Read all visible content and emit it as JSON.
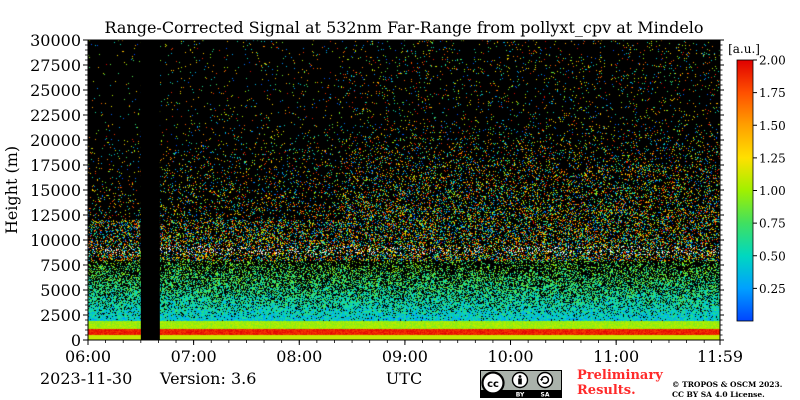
{
  "chart_data": {
    "type": "heatmap",
    "title": "Range-Corrected Signal at 532nm Far-Range from pollyxt_cpv at Mindelo",
    "xlabel": "UTC",
    "ylabel": "Height (m)",
    "x_tick_labels": [
      "06:00",
      "07:00",
      "08:00",
      "09:00",
      "10:00",
      "11:00",
      "11:59"
    ],
    "x_tick_values_hours": [
      6.0,
      7.0,
      8.0,
      9.0,
      10.0,
      11.0,
      11.983
    ],
    "xlim_hours": [
      6.0,
      11.983
    ],
    "y_ticks": [
      0,
      2500,
      5000,
      7500,
      10000,
      12500,
      15000,
      17500,
      20000,
      22500,
      25000,
      27500,
      30000
    ],
    "ylim": [
      0,
      30000
    ],
    "colorbar": {
      "label": "[a.u.]",
      "ticks": [
        "0.25",
        "0.50",
        "0.75",
        "1.00",
        "1.25",
        "1.50",
        "1.75",
        "2.00"
      ],
      "tick_values": [
        0.25,
        0.5,
        0.75,
        1.0,
        1.25,
        1.5,
        1.75,
        2.0
      ],
      "range": [
        0.0,
        2.0
      ],
      "colors": [
        "#0044ff",
        "#00a0ff",
        "#00d8c0",
        "#40e060",
        "#a0f000",
        "#ffe000",
        "#ffa000",
        "#ff5000",
        "#e00000"
      ]
    },
    "no_data_interval_hours": [
      6.5,
      6.68
    ],
    "cloud_layer_height_m": 9000,
    "grid": false
  },
  "footer": {
    "date": "2023-11-30",
    "version": "Version: 3.6",
    "preliminary_line1": "Preliminary",
    "preliminary_line2": "Results.",
    "copyright_line1": "© TROPOS & OSCM 2023.",
    "copyright_line2": "CC BY SA 4.0 License.",
    "cc_badge": {
      "by": "BY",
      "sa": "SA"
    }
  }
}
